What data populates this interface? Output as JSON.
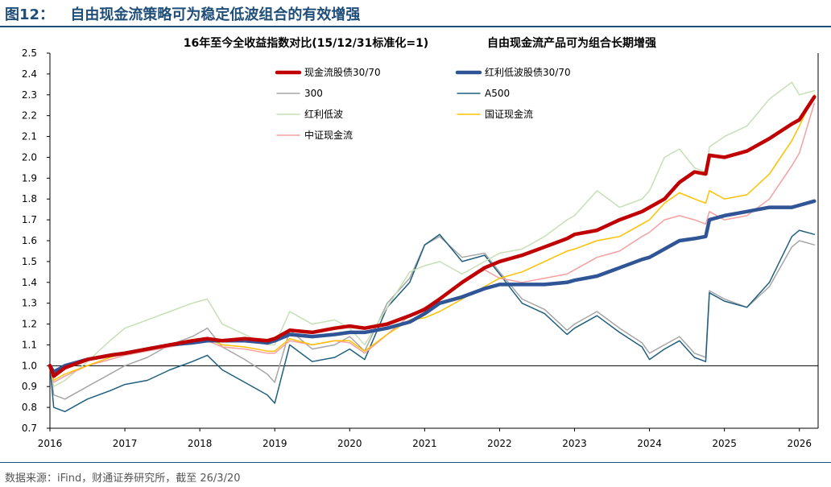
{
  "figure": {
    "label": "图12：",
    "title": "自由现金流策略可为稳定低波组合的有效增强",
    "source": "数据来源：iFind，财通证券研究所，截至 26/3/20"
  },
  "colors": {
    "fcf_bond": "#c00000",
    "div_bond": "#2f5597",
    "csi300": "#a6a6a6",
    "a500": "#1f5f7f",
    "div_lowvol": "#c5e0b4",
    "guozheng_fcf": "#ffc000",
    "zhongzheng_fcf": "#f4a0a0"
  },
  "chart_data": {
    "type": "line",
    "title": "16年至今全收益指数对比(15/12/31标准化=1)",
    "subtitle": "自由现金流产品可为组合长期增强",
    "xlabel": "",
    "ylabel": "",
    "x_ticks": [
      "2016",
      "2017",
      "2018",
      "2019",
      "2020",
      "2021",
      "2022",
      "2023",
      "2024",
      "2025",
      "2026"
    ],
    "y_ticks": [
      "0.7",
      "0.8",
      "0.9",
      "1.0",
      "1.1",
      "1.2",
      "1.3",
      "1.4",
      "1.5",
      "1.6",
      "1.7",
      "1.8",
      "1.9",
      "2.0",
      "2.1",
      "2.2",
      "2.3",
      "2.4",
      "2.5"
    ],
    "ylim": [
      0.7,
      2.5
    ],
    "xlim": [
      2016.0,
      2026.25
    ],
    "baseline": 1.0,
    "grid": false,
    "legend_position": "top",
    "series": [
      {
        "name": "现金流股债30/70",
        "key": "fcf_bond",
        "x": [
          2016.0,
          2016.05,
          2016.2,
          2016.5,
          2016.8,
          2017.0,
          2017.3,
          2017.6,
          2017.9,
          2018.1,
          2018.3,
          2018.6,
          2018.9,
          2019.0,
          2019.2,
          2019.5,
          2019.8,
          2020.0,
          2020.2,
          2020.5,
          2020.8,
          2021.0,
          2021.2,
          2021.5,
          2021.8,
          2022.0,
          2022.3,
          2022.6,
          2022.9,
          2023.0,
          2023.3,
          2023.6,
          2023.9,
          2024.0,
          2024.2,
          2024.4,
          2024.6,
          2024.75,
          2024.8,
          2025.0,
          2025.3,
          2025.6,
          2025.9,
          2026.0,
          2026.2
        ],
        "y": [
          1.0,
          0.95,
          0.99,
          1.03,
          1.05,
          1.06,
          1.08,
          1.1,
          1.12,
          1.13,
          1.12,
          1.13,
          1.12,
          1.13,
          1.17,
          1.16,
          1.18,
          1.19,
          1.18,
          1.2,
          1.24,
          1.27,
          1.32,
          1.4,
          1.47,
          1.5,
          1.53,
          1.57,
          1.61,
          1.63,
          1.65,
          1.7,
          1.74,
          1.76,
          1.8,
          1.88,
          1.93,
          1.92,
          2.01,
          2.0,
          2.03,
          2.09,
          2.16,
          2.18,
          2.29
        ]
      },
      {
        "name": "红利低波股债30/70",
        "key": "div_bond",
        "x": [
          2016.0,
          2016.05,
          2016.2,
          2016.5,
          2016.8,
          2017.0,
          2017.3,
          2017.6,
          2017.9,
          2018.1,
          2018.3,
          2018.6,
          2018.9,
          2019.0,
          2019.2,
          2019.5,
          2019.8,
          2020.0,
          2020.2,
          2020.5,
          2020.8,
          2021.0,
          2021.2,
          2021.5,
          2021.8,
          2022.0,
          2022.3,
          2022.6,
          2022.9,
          2023.0,
          2023.3,
          2023.6,
          2023.9,
          2024.0,
          2024.2,
          2024.4,
          2024.6,
          2024.75,
          2024.8,
          2025.0,
          2025.3,
          2025.6,
          2025.9,
          2026.0,
          2026.2
        ],
        "y": [
          1.0,
          0.97,
          1.0,
          1.03,
          1.05,
          1.06,
          1.08,
          1.1,
          1.11,
          1.12,
          1.12,
          1.12,
          1.11,
          1.12,
          1.15,
          1.14,
          1.15,
          1.16,
          1.16,
          1.18,
          1.21,
          1.25,
          1.3,
          1.33,
          1.37,
          1.39,
          1.39,
          1.39,
          1.4,
          1.41,
          1.43,
          1.47,
          1.51,
          1.52,
          1.56,
          1.6,
          1.61,
          1.62,
          1.7,
          1.72,
          1.74,
          1.76,
          1.76,
          1.77,
          1.79
        ]
      },
      {
        "name": "300",
        "key": "csi300",
        "x": [
          2016.0,
          2016.05,
          2016.2,
          2016.5,
          2016.8,
          2017.0,
          2017.3,
          2017.6,
          2017.9,
          2018.1,
          2018.3,
          2018.6,
          2018.9,
          2019.0,
          2019.2,
          2019.5,
          2019.8,
          2020.0,
          2020.2,
          2020.5,
          2020.8,
          2021.0,
          2021.2,
          2021.5,
          2021.8,
          2022.0,
          2022.3,
          2022.6,
          2022.9,
          2023.0,
          2023.3,
          2023.6,
          2023.9,
          2024.0,
          2024.2,
          2024.4,
          2024.6,
          2024.75,
          2024.8,
          2025.0,
          2025.3,
          2025.6,
          2025.9,
          2026.0,
          2026.2
        ],
        "y": [
          1.0,
          0.86,
          0.84,
          0.9,
          0.96,
          1.0,
          1.04,
          1.1,
          1.14,
          1.18,
          1.09,
          1.03,
          0.96,
          0.92,
          1.17,
          1.08,
          1.1,
          1.14,
          1.07,
          1.3,
          1.42,
          1.58,
          1.62,
          1.52,
          1.54,
          1.45,
          1.32,
          1.27,
          1.17,
          1.2,
          1.26,
          1.18,
          1.11,
          1.06,
          1.1,
          1.14,
          1.06,
          1.04,
          1.36,
          1.32,
          1.28,
          1.38,
          1.57,
          1.6,
          1.58
        ]
      },
      {
        "name": "A500",
        "key": "a500",
        "x": [
          2016.0,
          2016.05,
          2016.2,
          2016.5,
          2016.8,
          2017.0,
          2017.3,
          2017.6,
          2017.9,
          2018.1,
          2018.3,
          2018.6,
          2018.9,
          2019.0,
          2019.2,
          2019.5,
          2019.8,
          2020.0,
          2020.2,
          2020.5,
          2020.8,
          2021.0,
          2021.2,
          2021.5,
          2021.8,
          2022.0,
          2022.3,
          2022.6,
          2022.9,
          2023.0,
          2023.3,
          2023.6,
          2023.9,
          2024.0,
          2024.2,
          2024.4,
          2024.6,
          2024.75,
          2024.8,
          2025.0,
          2025.3,
          2025.6,
          2025.9,
          2026.0,
          2026.2
        ],
        "y": [
          1.0,
          0.8,
          0.78,
          0.84,
          0.88,
          0.91,
          0.93,
          0.98,
          1.02,
          1.05,
          0.98,
          0.92,
          0.86,
          0.82,
          1.1,
          1.02,
          1.04,
          1.08,
          1.03,
          1.28,
          1.4,
          1.58,
          1.63,
          1.5,
          1.53,
          1.44,
          1.3,
          1.25,
          1.15,
          1.18,
          1.24,
          1.16,
          1.09,
          1.03,
          1.08,
          1.12,
          1.04,
          1.02,
          1.35,
          1.31,
          1.28,
          1.4,
          1.62,
          1.65,
          1.63
        ]
      },
      {
        "name": "红利低波",
        "key": "div_lowvol",
        "x": [
          2016.0,
          2016.05,
          2016.2,
          2016.5,
          2016.8,
          2017.0,
          2017.3,
          2017.6,
          2017.9,
          2018.1,
          2018.3,
          2018.6,
          2018.9,
          2019.0,
          2019.2,
          2019.5,
          2019.8,
          2020.0,
          2020.2,
          2020.5,
          2020.8,
          2021.0,
          2021.2,
          2021.5,
          2021.8,
          2022.0,
          2022.3,
          2022.6,
          2022.9,
          2023.0,
          2023.3,
          2023.6,
          2023.9,
          2024.0,
          2024.2,
          2024.4,
          2024.6,
          2024.75,
          2024.8,
          2025.0,
          2025.3,
          2025.6,
          2025.9,
          2026.0,
          2026.2
        ],
        "y": [
          1.0,
          0.9,
          0.93,
          1.02,
          1.12,
          1.18,
          1.22,
          1.26,
          1.3,
          1.32,
          1.2,
          1.15,
          1.1,
          1.1,
          1.26,
          1.2,
          1.22,
          1.18,
          1.1,
          1.28,
          1.45,
          1.48,
          1.5,
          1.44,
          1.5,
          1.54,
          1.56,
          1.62,
          1.7,
          1.72,
          1.84,
          1.76,
          1.8,
          1.84,
          2.0,
          2.04,
          1.95,
          1.93,
          2.05,
          2.1,
          2.15,
          2.28,
          2.36,
          2.3,
          2.32
        ]
      },
      {
        "name": "国证现金流",
        "key": "guozheng_fcf",
        "x": [
          2016.0,
          2016.05,
          2016.2,
          2016.5,
          2016.8,
          2017.0,
          2017.3,
          2017.6,
          2017.9,
          2018.1,
          2018.3,
          2018.6,
          2018.9,
          2019.0,
          2019.2,
          2019.5,
          2019.8,
          2020.0,
          2020.2,
          2020.5,
          2020.8,
          2021.0,
          2021.2,
          2021.5,
          2021.8,
          2022.0,
          2022.3,
          2022.6,
          2022.9,
          2023.0,
          2023.3,
          2023.6,
          2023.9,
          2024.0,
          2024.2,
          2024.4,
          2024.6,
          2024.75,
          2024.8,
          2025.0,
          2025.3,
          2025.6,
          2025.9,
          2026.0,
          2026.2
        ],
        "y": [
          1.0,
          0.93,
          0.96,
          1.0,
          1.04,
          1.06,
          1.08,
          1.1,
          1.12,
          1.13,
          1.1,
          1.09,
          1.07,
          1.07,
          1.13,
          1.1,
          1.12,
          1.12,
          1.07,
          1.15,
          1.22,
          1.23,
          1.26,
          1.32,
          1.38,
          1.42,
          1.45,
          1.5,
          1.55,
          1.56,
          1.6,
          1.62,
          1.68,
          1.7,
          1.78,
          1.83,
          1.8,
          1.78,
          1.84,
          1.8,
          1.82,
          1.92,
          2.08,
          2.15,
          2.3
        ]
      },
      {
        "name": "中证现金流",
        "key": "zhongzheng_fcf",
        "x": [
          2016.0,
          2016.05,
          2016.2,
          2016.5,
          2016.8,
          2017.0,
          2017.3,
          2017.6,
          2017.9,
          2018.1,
          2018.3,
          2018.6,
          2018.9,
          2019.0,
          2019.2,
          2019.5,
          2019.8,
          2020.0,
          2020.2,
          2020.5,
          2020.8,
          2021.0,
          2021.2,
          2021.5,
          2021.8,
          2022.0,
          2022.3,
          2022.6,
          2022.9,
          2023.0,
          2023.3,
          2023.6,
          2023.9,
          2024.0,
          2024.2,
          2024.4,
          2024.6,
          2024.75,
          2024.8,
          2025.0,
          2025.3,
          2025.6,
          2025.9,
          2026.0,
          2026.2
        ],
        "y": [
          1.0,
          0.92,
          0.95,
          1.0,
          1.03,
          1.05,
          1.07,
          1.09,
          1.11,
          1.12,
          1.09,
          1.08,
          1.06,
          1.06,
          1.12,
          1.1,
          1.12,
          1.11,
          1.06,
          1.15,
          1.24,
          1.28,
          1.32,
          1.4,
          1.46,
          1.42,
          1.4,
          1.42,
          1.44,
          1.46,
          1.52,
          1.55,
          1.62,
          1.64,
          1.7,
          1.72,
          1.7,
          1.68,
          1.74,
          1.7,
          1.72,
          1.8,
          1.96,
          2.02,
          2.26
        ]
      }
    ]
  }
}
